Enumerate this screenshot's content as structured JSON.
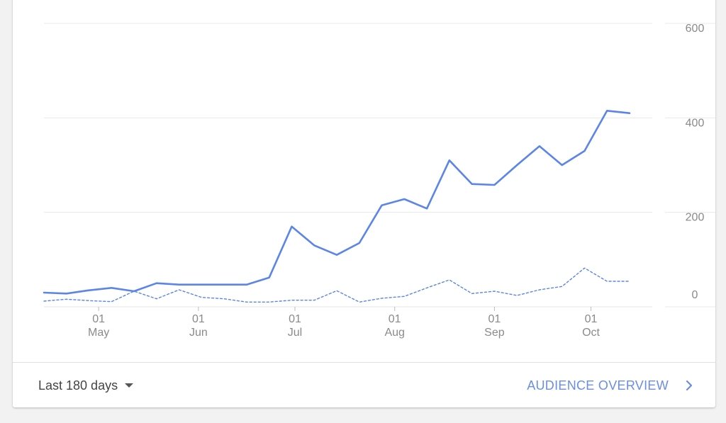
{
  "chart_data": {
    "type": "line",
    "ylim": [
      0,
      600
    ],
    "y_ticks": [
      0,
      200,
      400,
      600
    ],
    "grid": true,
    "x_ticks": [
      {
        "day": "01",
        "month": "May"
      },
      {
        "day": "01",
        "month": "Jun"
      },
      {
        "day": "01",
        "month": "Jul"
      },
      {
        "day": "01",
        "month": "Aug"
      },
      {
        "day": "01",
        "month": "Sep"
      },
      {
        "day": "01",
        "month": "Oct"
      }
    ],
    "x": [
      "2023-04-14",
      "2023-04-21",
      "2023-04-28",
      "2023-05-05",
      "2023-05-12",
      "2023-05-19",
      "2023-05-26",
      "2023-06-02",
      "2023-06-09",
      "2023-06-16",
      "2023-06-23",
      "2023-06-30",
      "2023-07-07",
      "2023-07-14",
      "2023-07-21",
      "2023-07-28",
      "2023-08-04",
      "2023-08-11",
      "2023-08-18",
      "2023-08-25",
      "2023-09-01",
      "2023-09-08",
      "2023-09-15",
      "2023-09-22",
      "2023-09-29",
      "2023-10-06",
      "2023-10-13"
    ],
    "series": [
      {
        "style": "solid",
        "color": "#5b85e8",
        "values": [
          30,
          28,
          35,
          40,
          33,
          50,
          47,
          47,
          47,
          47,
          62,
          170,
          130,
          110,
          135,
          215,
          228,
          208,
          310,
          260,
          258,
          300,
          340,
          300,
          330,
          415,
          410
        ]
      },
      {
        "style": "dashed",
        "color": "#5b85e8",
        "values": [
          12,
          16,
          13,
          11,
          33,
          17,
          36,
          20,
          17,
          10,
          10,
          14,
          14,
          34,
          10,
          18,
          22,
          40,
          57,
          28,
          33,
          24,
          36,
          43,
          82,
          54,
          54
        ]
      }
    ]
  },
  "footer": {
    "range_label": "Last 180 days",
    "link_label": "AUDIENCE OVERVIEW"
  }
}
